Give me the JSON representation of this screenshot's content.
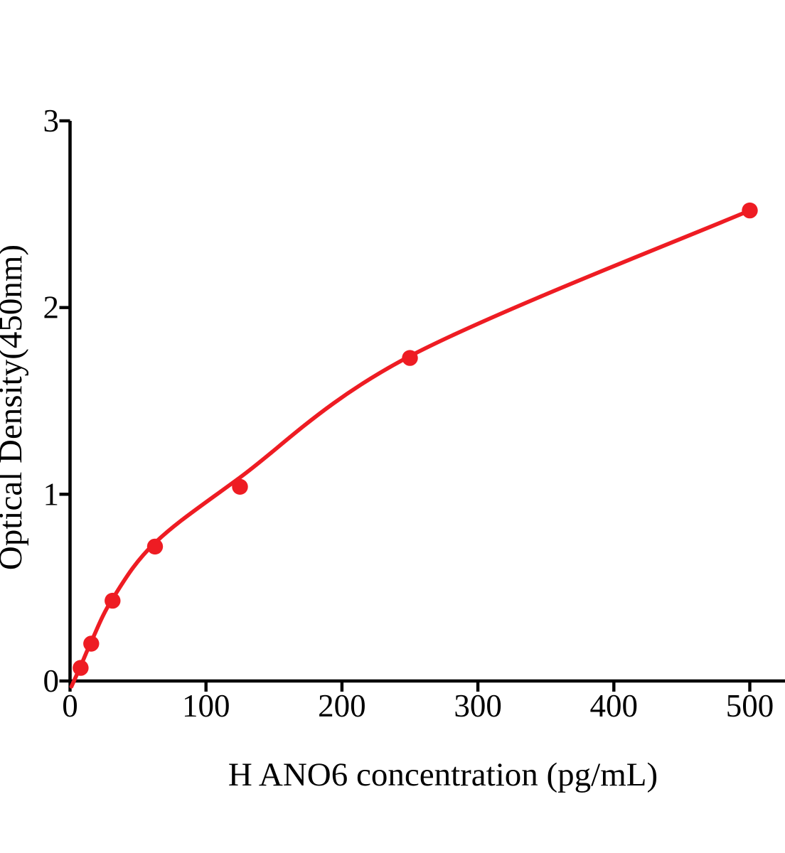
{
  "figure": {
    "background": "#ffffff"
  },
  "chart_data": {
    "type": "scatter",
    "title": "",
    "xlabel": "H ANO6 concentration (pg/mL)",
    "ylabel": "Optical Density(450nm)",
    "x_tick_labels": [
      "0",
      "100",
      "200",
      "300",
      "400",
      "500"
    ],
    "x_tick_values": [
      0,
      100,
      200,
      300,
      400,
      500
    ],
    "y_tick_labels": [
      "0",
      "1",
      "2",
      "3"
    ],
    "y_tick_values": [
      0,
      1,
      2,
      3
    ],
    "xlim": [
      0,
      526
    ],
    "ylim": [
      0,
      3
    ],
    "grid": false,
    "legend_position": "none",
    "axis_color": "#000000",
    "series": [
      {
        "name": "H ANO6 standard curve",
        "marker": "circle",
        "color": "#ee1c23",
        "points": [
          {
            "x": 7.8,
            "y": 0.07
          },
          {
            "x": 15.6,
            "y": 0.2
          },
          {
            "x": 31.25,
            "y": 0.43
          },
          {
            "x": 62.5,
            "y": 0.72
          },
          {
            "x": 125,
            "y": 1.04
          },
          {
            "x": 250,
            "y": 1.73
          },
          {
            "x": 500,
            "y": 2.52
          }
        ],
        "fit_curve": [
          {
            "x": 1,
            "y": -0.03
          },
          {
            "x": 7.8,
            "y": 0.08
          },
          {
            "x": 15.6,
            "y": 0.21
          },
          {
            "x": 31.25,
            "y": 0.44
          },
          {
            "x": 62.5,
            "y": 0.74
          },
          {
            "x": 125,
            "y": 1.09
          },
          {
            "x": 250,
            "y": 1.74
          },
          {
            "x": 500,
            "y": 2.52
          }
        ]
      }
    ]
  }
}
